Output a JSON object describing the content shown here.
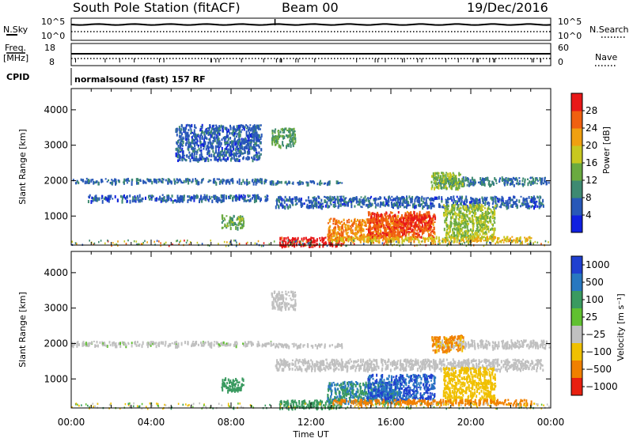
{
  "header": {
    "title": "South Pole Station (fitACF)",
    "beam": "Beam 00",
    "date": "19/Dec/2016"
  },
  "status": {
    "nsky_label": "N.Sky",
    "nsky_ticks": [
      "10^5",
      "10^0"
    ],
    "nsearch_label": "N.Search",
    "nsearch_ticks": [
      "10^5",
      "10^0"
    ],
    "freq_label": "Freq.",
    "freq_unit": "[MHz]",
    "freq_ticks": [
      "18",
      "8"
    ],
    "nave_label": "Nave",
    "nave_ticks": [
      "60",
      "0"
    ],
    "cpid_label": "CPID",
    "cpid_text": "normalsound (fast) 157 RF"
  },
  "chart_data": [
    {
      "type": "heatmap",
      "panel": "power",
      "ylabel": "Slant Range [km]",
      "xlabel": "",
      "yticks": [
        1000,
        2000,
        3000,
        4000
      ],
      "ylim": [
        180,
        4600
      ],
      "xlim_hours": [
        0,
        24
      ],
      "colorbar": {
        "label": "Power [dB]",
        "ticks": [
          "4",
          "8",
          "12",
          "16",
          "20",
          "24",
          "28"
        ],
        "range": [
          0,
          30
        ],
        "colors": [
          "#1020e0",
          "#2858b8",
          "#3e8a72",
          "#6aaa40",
          "#c8c820",
          "#f0a010",
          "#f06010",
          "#e81818"
        ]
      },
      "echo_regions": [
        {
          "t0": 0.0,
          "t1": 10.0,
          "r0": 1960,
          "r1": 2080,
          "value": 7
        },
        {
          "t0": 10.0,
          "t1": 13.6,
          "r0": 1930,
          "r1": 2020,
          "value": 7
        },
        {
          "t0": 18.2,
          "t1": 23.9,
          "r0": 1900,
          "r1": 2120,
          "value": 8
        },
        {
          "t0": 0.8,
          "t1": 9.8,
          "r0": 1450,
          "r1": 1620,
          "value": 6
        },
        {
          "t0": 10.2,
          "t1": 23.6,
          "r0": 1280,
          "r1": 1580,
          "value": 6
        },
        {
          "t0": 7.5,
          "t1": 8.6,
          "r0": 690,
          "r1": 1050,
          "value": 13
        },
        {
          "t0": 10.0,
          "t1": 11.2,
          "r0": 3000,
          "r1": 3500,
          "value": 11
        },
        {
          "t0": 5.2,
          "t1": 9.5,
          "r0": 2600,
          "r1": 3600,
          "value": 6
        },
        {
          "t0": 10.4,
          "t1": 13.5,
          "r0": 190,
          "r1": 420,
          "value": 29
        },
        {
          "t0": 12.8,
          "t1": 16.4,
          "r0": 350,
          "r1": 950,
          "value": 22
        },
        {
          "t0": 14.8,
          "t1": 18.2,
          "r0": 420,
          "r1": 1150,
          "value": 25
        },
        {
          "t0": 16.4,
          "t1": 18.0,
          "r0": 620,
          "r1": 1050,
          "value": 27
        },
        {
          "t0": 18.6,
          "t1": 21.2,
          "r0": 380,
          "r1": 1350,
          "value": 15
        },
        {
          "t0": 13.0,
          "t1": 23.0,
          "r0": 300,
          "r1": 440,
          "value": 19
        },
        {
          "t0": 18.0,
          "t1": 19.6,
          "r0": 1800,
          "r1": 2250,
          "value": 14
        }
      ]
    },
    {
      "type": "heatmap",
      "panel": "velocity",
      "ylabel": "Slant Range [km]",
      "xlabel": "Time UT",
      "xticks": [
        "00:00",
        "04:00",
        "08:00",
        "12:00",
        "16:00",
        "20:00",
        "00:00"
      ],
      "yticks": [
        1000,
        2000,
        3000,
        4000
      ],
      "ylim": [
        180,
        4600
      ],
      "xlim_hours": [
        0,
        24
      ],
      "colorbar": {
        "label": "Velocity [m s⁻¹]",
        "ticks": [
          "1000",
          "500",
          "100",
          "25",
          "−25",
          "−100",
          "−500",
          "−1000"
        ],
        "colors": [
          "#2040d0",
          "#2878c0",
          "#3a9a60",
          "#60c030",
          "#c0c0c0",
          "#f0c000",
          "#f08000",
          "#e82010"
        ]
      },
      "echo_regions": [
        {
          "t0": 0.0,
          "t1": 10.0,
          "r0": 1960,
          "r1": 2080,
          "value": 20
        },
        {
          "t0": 10.0,
          "t1": 13.6,
          "r0": 1930,
          "r1": 2020,
          "value": 15
        },
        {
          "t0": 18.2,
          "t1": 23.9,
          "r0": 1900,
          "r1": 2120,
          "value": 0
        },
        {
          "t0": 10.2,
          "t1": 23.6,
          "r0": 1280,
          "r1": 1580,
          "value": 10
        },
        {
          "t0": 7.5,
          "t1": 8.6,
          "r0": 690,
          "r1": 1050,
          "value": 150
        },
        {
          "t0": 10.0,
          "t1": 11.2,
          "r0": 3000,
          "r1": 3500,
          "value": 15
        },
        {
          "t0": 10.4,
          "t1": 13.5,
          "r0": 190,
          "r1": 420,
          "value": 110
        },
        {
          "t0": 12.8,
          "t1": 16.4,
          "r0": 350,
          "r1": 950,
          "value": 300
        },
        {
          "t0": 14.8,
          "t1": 18.2,
          "r0": 420,
          "r1": 1150,
          "value": 700
        },
        {
          "t0": 18.6,
          "t1": 21.2,
          "r0": 380,
          "r1": 1350,
          "value": -60
        },
        {
          "t0": 13.0,
          "t1": 23.0,
          "r0": 300,
          "r1": 440,
          "value": -150
        },
        {
          "t0": 18.0,
          "t1": 19.6,
          "r0": 1800,
          "r1": 2250,
          "value": -120
        }
      ]
    }
  ]
}
